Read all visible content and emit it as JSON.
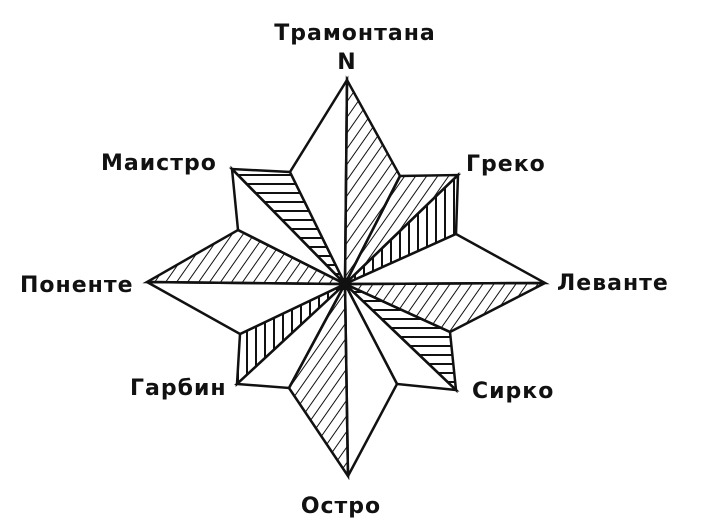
{
  "diagram": {
    "labels": {
      "north_letter": "N",
      "north": "Трамонтана",
      "northeast": "Греко",
      "east": "Левантe",
      "southeast": "Сирко",
      "south": "Остро",
      "southwest": "Гарбин",
      "west": "Поненте",
      "northwest": "Маистро"
    },
    "colors": {
      "ink": "#111111",
      "paper": "#ffffff"
    }
  }
}
